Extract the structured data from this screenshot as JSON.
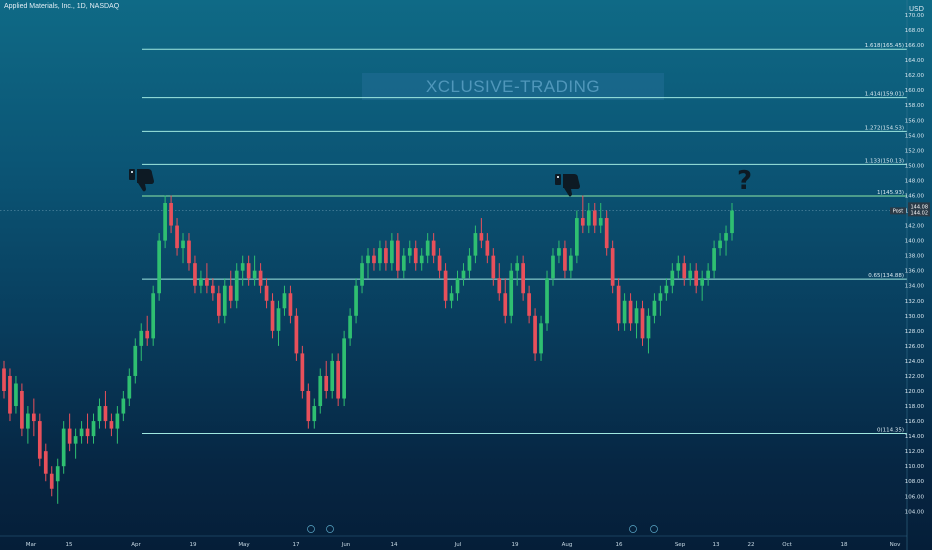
{
  "symbol_title": "Applied Materials, Inc., 1D, NASDAQ",
  "currency": "USD",
  "watermark": "XCLUSIVE-TRADING",
  "question_mark": "?",
  "colors": {
    "up": "#2fbf71",
    "down": "#e8505b",
    "line_cyan": "#9fe8e0",
    "line_green": "#8de8a6",
    "price_tag": "#2a3a47"
  },
  "chart_data": {
    "type": "candlestick",
    "price_axis": {
      "min": 104,
      "max": 170,
      "step": 2,
      "side": "right"
    },
    "x_ticks": [
      "Mar",
      "15",
      "Apr",
      "19",
      "May",
      "17",
      "Jun",
      "14",
      "Jul",
      "19",
      "Aug",
      "16",
      "Sep",
      "13",
      "22",
      "Oct",
      "18",
      "Nov"
    ],
    "fib_levels": [
      {
        "label": "1.618(165.45)",
        "value": 165.45
      },
      {
        "label": "1.414(159.01)",
        "value": 159.01
      },
      {
        "label": "1.272(154.53)",
        "value": 154.53
      },
      {
        "label": "1.133(150.13)",
        "value": 150.13
      },
      {
        "label": "1(145.93)",
        "value": 145.93
      },
      {
        "label": "0.65(134.88)",
        "value": 134.88
      },
      {
        "label": "0(114.35)",
        "value": 114.35
      }
    ],
    "price_tag": {
      "top": "144.08",
      "label": "Post",
      "value": "144.02"
    },
    "candles": [
      [
        123,
        124,
        119,
        120
      ],
      [
        122,
        123,
        116,
        117
      ],
      [
        118,
        122,
        117,
        121
      ],
      [
        120,
        121,
        114,
        115
      ],
      [
        115,
        118,
        113,
        117
      ],
      [
        117,
        119,
        114,
        116
      ],
      [
        116,
        117,
        110,
        111
      ],
      [
        112,
        113,
        108,
        109
      ],
      [
        109,
        110,
        106,
        107
      ],
      [
        108,
        111,
        105,
        110
      ],
      [
        110,
        116,
        109,
        115
      ],
      [
        115,
        117,
        112,
        113
      ],
      [
        113,
        115,
        111,
        114
      ],
      [
        114,
        116,
        113,
        115
      ],
      [
        115,
        117,
        113,
        114
      ],
      [
        114,
        117,
        113,
        116
      ],
      [
        116,
        119,
        115,
        118
      ],
      [
        118,
        120,
        115,
        116
      ],
      [
        116,
        117,
        114,
        115
      ],
      [
        115,
        118,
        113,
        117
      ],
      [
        117,
        120,
        116,
        119
      ],
      [
        119,
        123,
        118,
        122
      ],
      [
        122,
        127,
        121,
        126
      ],
      [
        126,
        129,
        124,
        128
      ],
      [
        128,
        130,
        126,
        127
      ],
      [
        127,
        134,
        126,
        133
      ],
      [
        133,
        141,
        132,
        140
      ],
      [
        140,
        146,
        139,
        145
      ],
      [
        145,
        146,
        141,
        142
      ],
      [
        142,
        143,
        138,
        139
      ],
      [
        139,
        141,
        137,
        140
      ],
      [
        140,
        141,
        136,
        137
      ],
      [
        137,
        138,
        133,
        134
      ],
      [
        134,
        136,
        133,
        135
      ],
      [
        135,
        137,
        133,
        134
      ],
      [
        134,
        135,
        132,
        133
      ],
      [
        133,
        134,
        129,
        130
      ],
      [
        130,
        135,
        129,
        134
      ],
      [
        134,
        136,
        131,
        132
      ],
      [
        132,
        137,
        131,
        136
      ],
      [
        136,
        138,
        134,
        137
      ],
      [
        137,
        138,
        134,
        135
      ],
      [
        135,
        138,
        134,
        136
      ],
      [
        136,
        137,
        133,
        134
      ],
      [
        134,
        135,
        131,
        132
      ],
      [
        132,
        133,
        127,
        128
      ],
      [
        128,
        132,
        126,
        131
      ],
      [
        131,
        134,
        130,
        133
      ],
      [
        133,
        134,
        129,
        130
      ],
      [
        130,
        131,
        124,
        125
      ],
      [
        125,
        126,
        119,
        120
      ],
      [
        120,
        121,
        115,
        116
      ],
      [
        116,
        119,
        115,
        118
      ],
      [
        118,
        123,
        117,
        122
      ],
      [
        122,
        124,
        119,
        120
      ],
      [
        120,
        125,
        119,
        124
      ],
      [
        124,
        125,
        118,
        119
      ],
      [
        119,
        128,
        118,
        127
      ],
      [
        127,
        131,
        126,
        130
      ],
      [
        130,
        135,
        129,
        134
      ],
      [
        134,
        138,
        133,
        137
      ],
      [
        137,
        139,
        135,
        138
      ],
      [
        138,
        139,
        136,
        137
      ],
      [
        137,
        140,
        136,
        139
      ],
      [
        139,
        140,
        136,
        137
      ],
      [
        137,
        141,
        136,
        140
      ],
      [
        140,
        141,
        135,
        136
      ],
      [
        136,
        139,
        135,
        138
      ],
      [
        138,
        140,
        137,
        139
      ],
      [
        139,
        140,
        136,
        137
      ],
      [
        137,
        139,
        136,
        138
      ],
      [
        138,
        141,
        137,
        140
      ],
      [
        140,
        141,
        137,
        138
      ],
      [
        138,
        139,
        135,
        136
      ],
      [
        136,
        137,
        131,
        132
      ],
      [
        132,
        134,
        131,
        133
      ],
      [
        133,
        136,
        132,
        135
      ],
      [
        135,
        137,
        134,
        136
      ],
      [
        136,
        139,
        135,
        138
      ],
      [
        138,
        142,
        137,
        141
      ],
      [
        141,
        143,
        139,
        140
      ],
      [
        140,
        141,
        137,
        138
      ],
      [
        138,
        139,
        134,
        135
      ],
      [
        135,
        137,
        132,
        133
      ],
      [
        133,
        135,
        129,
        130
      ],
      [
        130,
        137,
        129,
        136
      ],
      [
        136,
        138,
        134,
        137
      ],
      [
        137,
        138,
        132,
        133
      ],
      [
        133,
        134,
        129,
        130
      ],
      [
        130,
        131,
        124,
        125
      ],
      [
        125,
        130,
        124,
        129
      ],
      [
        129,
        136,
        128,
        135
      ],
      [
        135,
        139,
        134,
        138
      ],
      [
        138,
        140,
        137,
        139
      ],
      [
        139,
        140,
        135,
        136
      ],
      [
        136,
        139,
        135,
        138
      ],
      [
        138,
        144,
        137,
        143
      ],
      [
        143,
        146,
        141,
        142
      ],
      [
        142,
        145,
        141,
        144
      ],
      [
        144,
        145,
        141,
        142
      ],
      [
        142,
        145,
        141,
        143
      ],
      [
        143,
        144,
        138,
        139
      ],
      [
        139,
        140,
        133,
        134
      ],
      [
        134,
        135,
        128,
        129
      ],
      [
        129,
        133,
        128,
        132
      ],
      [
        132,
        133,
        128,
        129
      ],
      [
        129,
        132,
        127,
        131
      ],
      [
        131,
        132,
        126,
        127
      ],
      [
        127,
        131,
        125,
        130
      ],
      [
        130,
        133,
        129,
        132
      ],
      [
        132,
        134,
        130,
        133
      ],
      [
        133,
        135,
        132,
        134
      ],
      [
        134,
        137,
        133,
        136
      ],
      [
        136,
        138,
        135,
        137
      ],
      [
        137,
        138,
        134,
        135
      ],
      [
        135,
        137,
        134,
        136
      ],
      [
        136,
        137,
        133,
        134
      ],
      [
        134,
        136,
        132,
        135
      ],
      [
        135,
        137,
        134,
        136
      ],
      [
        136,
        140,
        135,
        139
      ],
      [
        139,
        141,
        138,
        140
      ],
      [
        140,
        142,
        138,
        141
      ],
      [
        141,
        145,
        140,
        144
      ]
    ]
  }
}
